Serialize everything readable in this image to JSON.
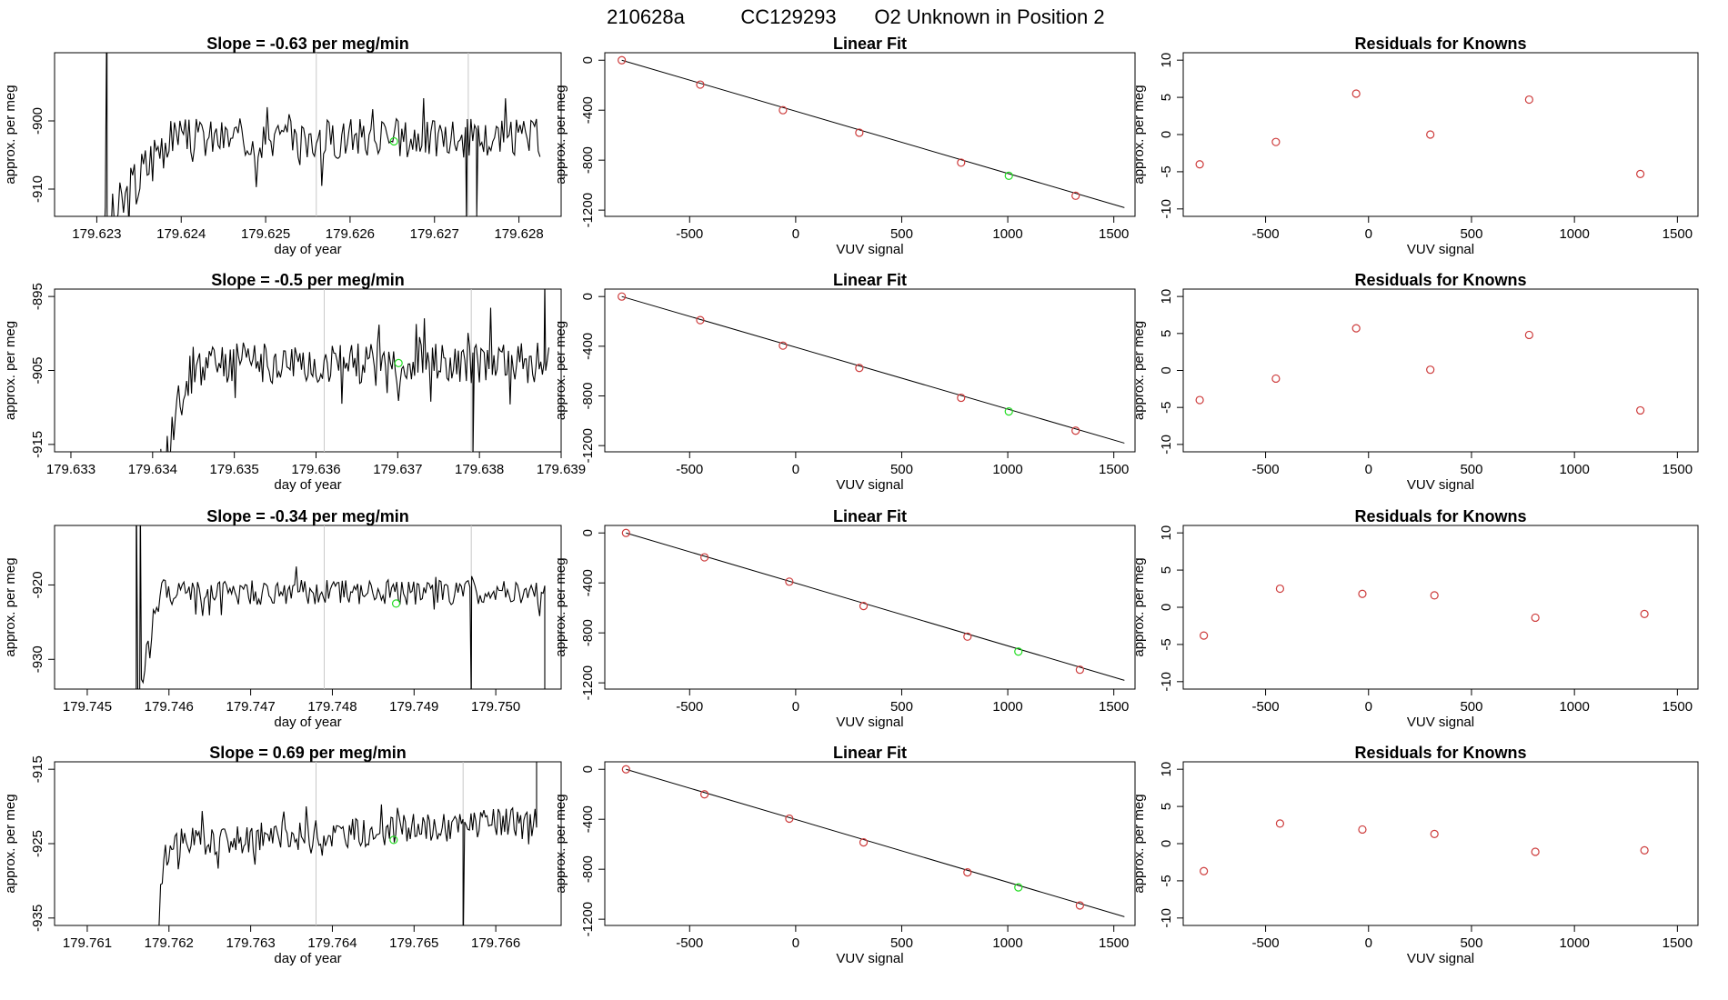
{
  "header": {
    "run_id": "210628a",
    "cylinder": "CC129293",
    "description": "O2 Unknown in Position  2"
  },
  "colors": {
    "line": "#000000",
    "known": "#cd3b3b",
    "unknown": "#22dd22",
    "guide": "#c8c8c8"
  },
  "chart_data": [
    {
      "type": "line",
      "title": "Slope =  -0.63  per meg/min",
      "xlabel": "day of year",
      "ylabel": "approx. per meg",
      "xlim": [
        179.6225,
        179.6285
      ],
      "ylim": [
        -914.0,
        -890.0
      ],
      "xticks": [
        "179.623",
        "179.624",
        "179.625",
        "179.626",
        "179.627",
        "179.628"
      ],
      "yticks": [
        "-900",
        "-910"
      ],
      "vlines": [
        179.6256,
        179.6274
      ],
      "series": {
        "start": 179.62308,
        "end": 179.62825,
        "level": -902.5,
        "amplitude": 3.0,
        "seed": 3,
        "settle_start": 179.6238,
        "spikes": [
          {
            "x": 179.62312,
            "y": -880
          },
          {
            "x": 179.62738,
            "y": -916
          },
          {
            "x": 179.6275,
            "y": -914
          }
        ]
      },
      "unknown_point": {
        "x": 179.62652,
        "y": -903.0
      }
    },
    {
      "type": "bar",
      "title": "Linear Fit",
      "xlabel": "VUV signal",
      "ylabel": "approx. per meg",
      "xlim": [
        -900,
        1600
      ],
      "ylim": [
        -1250,
        60
      ],
      "xticks": [
        "-500",
        "0",
        "500",
        "1000",
        "1500"
      ],
      "yticks": [
        "0",
        "-400",
        "-800",
        "-1200"
      ],
      "fit_line": [
        {
          "x": -820,
          "y": 0
        },
        {
          "x": 1550,
          "y": -1180
        }
      ],
      "knowns": [
        {
          "x": -820,
          "y": 0
        },
        {
          "x": -450,
          "y": -195
        },
        {
          "x": -60,
          "y": -400
        },
        {
          "x": 300,
          "y": -580
        },
        {
          "x": 780,
          "y": -820
        },
        {
          "x": 1320,
          "y": -1085
        }
      ],
      "unknown": {
        "x": 1005,
        "y": -925
      }
    },
    {
      "type": "scatter",
      "title": "Residuals for Knowns",
      "xlabel": "VUV signal",
      "ylabel": "approx. per meg",
      "xlim": [
        -900,
        1600
      ],
      "ylim": [
        -11,
        11
      ],
      "xticks": [
        "-500",
        "0",
        "500",
        "1000",
        "1500"
      ],
      "yticks": [
        "10",
        "5",
        "0",
        "-5",
        "-10"
      ],
      "points": [
        {
          "x": -820,
          "y": -4.0
        },
        {
          "x": -450,
          "y": -1.0
        },
        {
          "x": -60,
          "y": 5.5
        },
        {
          "x": 300,
          "y": 0.0
        },
        {
          "x": 780,
          "y": 4.7
        },
        {
          "x": 1320,
          "y": -5.3
        }
      ]
    },
    {
      "type": "line",
      "title": "Slope =  -0.5  per meg/min",
      "xlabel": "day of year",
      "ylabel": "approx. per meg",
      "xlim": [
        179.6328,
        179.639
      ],
      "ylim": [
        -916.0,
        -894.0
      ],
      "xticks": [
        "179.633",
        "179.634",
        "179.635",
        "179.636",
        "179.637",
        "179.638",
        "179.639"
      ],
      "yticks": [
        "-895",
        "-905",
        "-915"
      ],
      "vlines": [
        179.6361,
        179.6379
      ],
      "series": {
        "start": 179.6341,
        "end": 179.63885,
        "level": -904.0,
        "amplitude": 2.8,
        "seed": 11,
        "settle_start": 179.6345,
        "spikes": [
          {
            "x": 179.63792,
            "y": -917
          },
          {
            "x": 179.6388,
            "y": -893
          }
        ]
      },
      "unknown_point": {
        "x": 179.63701,
        "y": -904.0
      }
    },
    {
      "type": "bar",
      "title": "Linear Fit",
      "xlabel": "VUV signal",
      "ylabel": "approx. per meg",
      "xlim": [
        -900,
        1600
      ],
      "ylim": [
        -1250,
        60
      ],
      "xticks": [
        "-500",
        "0",
        "500",
        "1000",
        "1500"
      ],
      "yticks": [
        "0",
        "-400",
        "-800",
        "-1200"
      ],
      "fit_line": [
        {
          "x": -820,
          "y": 0
        },
        {
          "x": 1550,
          "y": -1180
        }
      ],
      "knowns": [
        {
          "x": -820,
          "y": 0
        },
        {
          "x": -450,
          "y": -190
        },
        {
          "x": -60,
          "y": -395
        },
        {
          "x": 300,
          "y": -575
        },
        {
          "x": 780,
          "y": -815
        },
        {
          "x": 1320,
          "y": -1080
        }
      ],
      "unknown": {
        "x": 1005,
        "y": -925
      }
    },
    {
      "type": "scatter",
      "title": "Residuals for Knowns",
      "xlabel": "VUV signal",
      "ylabel": "approx. per meg",
      "xlim": [
        -900,
        1600
      ],
      "ylim": [
        -11,
        11
      ],
      "xticks": [
        "-500",
        "0",
        "500",
        "1000",
        "1500"
      ],
      "yticks": [
        "10",
        "5",
        "0",
        "-5",
        "-10"
      ],
      "points": [
        {
          "x": -820,
          "y": -4.0
        },
        {
          "x": -450,
          "y": -1.1
        },
        {
          "x": -60,
          "y": 5.7
        },
        {
          "x": 300,
          "y": 0.1
        },
        {
          "x": 780,
          "y": 4.8
        },
        {
          "x": 1320,
          "y": -5.4
        }
      ]
    },
    {
      "type": "line",
      "title": "Slope =  -0.34  per meg/min",
      "xlabel": "day of year",
      "ylabel": "approx. per meg",
      "xlim": [
        179.7446,
        179.7508
      ],
      "ylim": [
        -934.0,
        -912.0
      ],
      "xticks": [
        "179.745",
        "179.746",
        "179.747",
        "179.748",
        "179.749",
        "179.750"
      ],
      "yticks": [
        "-920",
        "-930"
      ],
      "vlines": [
        179.7479,
        179.7497
      ],
      "series": {
        "start": 179.7456,
        "end": 179.7506,
        "level": -921.0,
        "amplitude": 1.7,
        "seed": 21,
        "settle_start": 179.7459,
        "spikes": [
          {
            "x": 179.7456,
            "y": -905
          },
          {
            "x": 179.74565,
            "y": -908
          },
          {
            "x": 179.7497,
            "y": -936
          },
          {
            "x": 179.7506,
            "y": -940
          }
        ]
      },
      "unknown_point": {
        "x": 179.74878,
        "y": -922.5
      }
    },
    {
      "type": "bar",
      "title": "Linear Fit",
      "xlabel": "VUV signal",
      "ylabel": "approx. per meg",
      "xlim": [
        -900,
        1600
      ],
      "ylim": [
        -1250,
        60
      ],
      "xticks": [
        "-500",
        "0",
        "500",
        "1000",
        "1500"
      ],
      "yticks": [
        "0",
        "-400",
        "-800",
        "-1200"
      ],
      "fit_line": [
        {
          "x": -800,
          "y": 0
        },
        {
          "x": 1550,
          "y": -1180
        }
      ],
      "knowns": [
        {
          "x": -800,
          "y": 0
        },
        {
          "x": -430,
          "y": -195
        },
        {
          "x": -30,
          "y": -390
        },
        {
          "x": 320,
          "y": -585
        },
        {
          "x": 810,
          "y": -830
        },
        {
          "x": 1340,
          "y": -1095
        }
      ],
      "unknown": {
        "x": 1050,
        "y": -950
      }
    },
    {
      "type": "scatter",
      "title": "Residuals for Knowns",
      "xlabel": "VUV signal",
      "ylabel": "approx. per meg",
      "xlim": [
        -900,
        1600
      ],
      "ylim": [
        -11,
        11
      ],
      "xticks": [
        "-500",
        "0",
        "500",
        "1000",
        "1500"
      ],
      "yticks": [
        "10",
        "5",
        "0",
        "-5",
        "-10"
      ],
      "points": [
        {
          "x": -800,
          "y": -3.8
        },
        {
          "x": -430,
          "y": 2.5
        },
        {
          "x": -30,
          "y": 1.8
        },
        {
          "x": 320,
          "y": 1.6
        },
        {
          "x": 810,
          "y": -1.4
        },
        {
          "x": 1340,
          "y": -0.9
        }
      ]
    },
    {
      "type": "line",
      "title": "Slope =  0.69  per meg/min",
      "xlabel": "day of year",
      "ylabel": "approx. per meg",
      "xlim": [
        179.7606,
        179.7668
      ],
      "ylim": [
        -936.0,
        -914.0
      ],
      "xticks": [
        "179.761",
        "179.762",
        "179.763",
        "179.764",
        "179.765",
        "179.766"
      ],
      "yticks": [
        "-915",
        "-925",
        "-935"
      ],
      "vlines": [
        179.7638,
        179.7656
      ],
      "series": {
        "start": 179.7618,
        "end": 179.7665,
        "level": -925.0,
        "amplitude": 2.0,
        "seed": 31,
        "settle_start": 179.762,
        "trend": 3.0,
        "spikes": [
          {
            "x": 179.7656,
            "y": -940
          },
          {
            "x": 179.7665,
            "y": -912
          }
        ]
      },
      "unknown_point": {
        "x": 179.76475,
        "y": -924.5
      }
    },
    {
      "type": "bar",
      "title": "Linear Fit",
      "xlabel": "VUV signal",
      "ylabel": "approx. per meg",
      "xlim": [
        -900,
        1600
      ],
      "ylim": [
        -1250,
        60
      ],
      "xticks": [
        "-500",
        "0",
        "500",
        "1000",
        "1500"
      ],
      "yticks": [
        "0",
        "-400",
        "-800",
        "-1200"
      ],
      "fit_line": [
        {
          "x": -800,
          "y": 0
        },
        {
          "x": 1550,
          "y": -1180
        }
      ],
      "knowns": [
        {
          "x": -800,
          "y": 0
        },
        {
          "x": -430,
          "y": -200
        },
        {
          "x": -30,
          "y": -395
        },
        {
          "x": 320,
          "y": -585
        },
        {
          "x": 810,
          "y": -825
        },
        {
          "x": 1340,
          "y": -1090
        }
      ],
      "unknown": {
        "x": 1050,
        "y": -945
      }
    },
    {
      "type": "scatter",
      "title": "Residuals for Knowns",
      "xlabel": "VUV signal",
      "ylabel": "approx. per meg",
      "xlim": [
        -900,
        1600
      ],
      "ylim": [
        -11,
        11
      ],
      "xticks": [
        "-500",
        "0",
        "500",
        "1000",
        "1500"
      ],
      "yticks": [
        "10",
        "5",
        "0",
        "-5",
        "-10"
      ],
      "points": [
        {
          "x": -800,
          "y": -3.7
        },
        {
          "x": -430,
          "y": 2.7
        },
        {
          "x": -30,
          "y": 1.9
        },
        {
          "x": 320,
          "y": 1.3
        },
        {
          "x": 810,
          "y": -1.1
        },
        {
          "x": 1340,
          "y": -0.9
        }
      ]
    }
  ]
}
